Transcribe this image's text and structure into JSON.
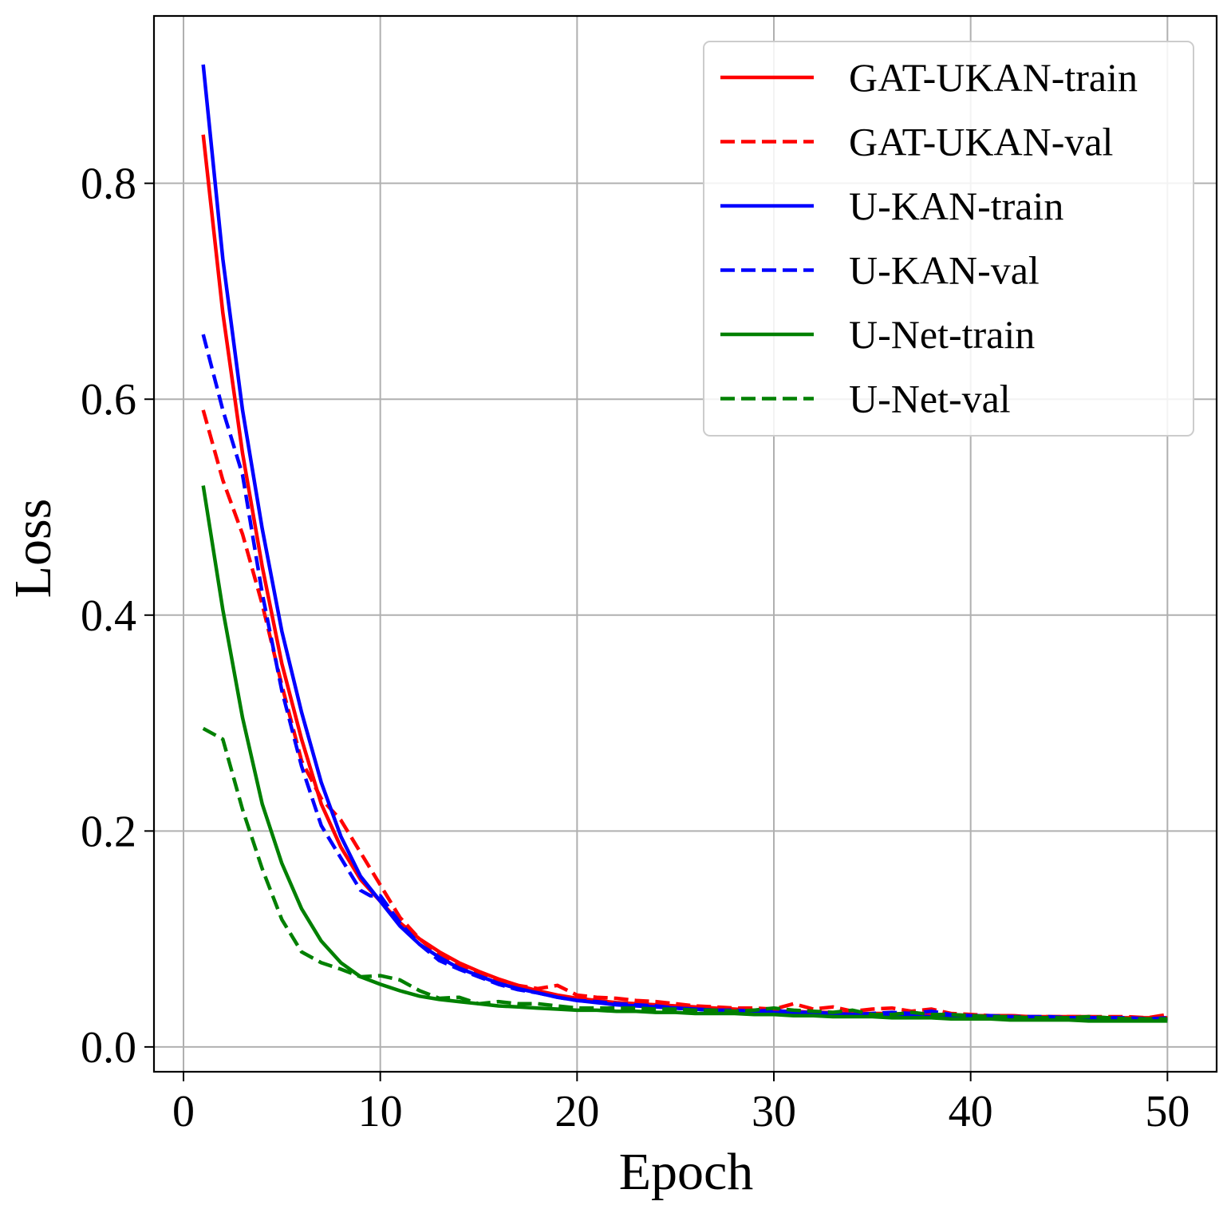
{
  "chart_data": {
    "type": "line",
    "title": "",
    "xlabel": "Epoch",
    "ylabel": "Loss",
    "xlim": [
      -1.5,
      52.5
    ],
    "ylim": [
      -0.023,
      0.955
    ],
    "xticks": [
      0,
      10,
      20,
      30,
      40,
      50
    ],
    "xtick_labels": [
      "0",
      "10",
      "20",
      "30",
      "40",
      "50"
    ],
    "yticks": [
      0.0,
      0.2,
      0.4,
      0.6,
      0.8
    ],
    "ytick_labels": [
      "0.0",
      "0.2",
      "0.4",
      "0.6",
      "0.8"
    ],
    "grid": true,
    "legend_position": "top-right",
    "series": [
      {
        "name": "GAT-UKAN-train",
        "color": "#ff0000",
        "dash": "solid",
        "x": [
          1,
          2,
          3,
          4,
          5,
          6,
          7,
          8,
          9,
          10,
          11,
          12,
          13,
          14,
          15,
          16,
          17,
          18,
          19,
          20,
          21,
          22,
          23,
          24,
          25,
          26,
          27,
          28,
          29,
          30,
          31,
          32,
          33,
          34,
          35,
          36,
          37,
          38,
          39,
          40,
          41,
          42,
          43,
          44,
          45,
          46,
          47,
          48,
          49,
          50
        ],
        "y": [
          0.845,
          0.68,
          0.55,
          0.445,
          0.355,
          0.285,
          0.225,
          0.185,
          0.155,
          0.135,
          0.115,
          0.1,
          0.088,
          0.078,
          0.07,
          0.063,
          0.057,
          0.052,
          0.048,
          0.045,
          0.043,
          0.041,
          0.04,
          0.039,
          0.038,
          0.037,
          0.036,
          0.035,
          0.034,
          0.033,
          0.033,
          0.032,
          0.032,
          0.031,
          0.031,
          0.031,
          0.03,
          0.03,
          0.03,
          0.029,
          0.029,
          0.029,
          0.028,
          0.028,
          0.028,
          0.028,
          0.027,
          0.027,
          0.027,
          0.027
        ]
      },
      {
        "name": "GAT-UKAN-val",
        "color": "#ff0000",
        "dash": "dashed",
        "x": [
          1,
          2,
          3,
          4,
          5,
          6,
          7,
          8,
          9,
          10,
          11,
          12,
          13,
          14,
          15,
          16,
          17,
          18,
          19,
          20,
          21,
          22,
          23,
          24,
          25,
          26,
          27,
          28,
          29,
          30,
          31,
          32,
          33,
          34,
          35,
          36,
          37,
          38,
          39,
          40,
          41,
          42,
          43,
          44,
          45,
          46,
          47,
          48,
          49,
          50
        ],
        "y": [
          0.59,
          0.525,
          0.475,
          0.41,
          0.335,
          0.265,
          0.23,
          0.21,
          0.18,
          0.15,
          0.12,
          0.1,
          0.085,
          0.075,
          0.068,
          0.062,
          0.057,
          0.054,
          0.057,
          0.048,
          0.046,
          0.045,
          0.043,
          0.042,
          0.04,
          0.038,
          0.037,
          0.036,
          0.036,
          0.035,
          0.04,
          0.035,
          0.037,
          0.033,
          0.035,
          0.036,
          0.033,
          0.035,
          0.031,
          0.03,
          0.029,
          0.029,
          0.028,
          0.028,
          0.028,
          0.028,
          0.028,
          0.028,
          0.027,
          0.03
        ]
      },
      {
        "name": "U-KAN-train",
        "color": "#0000ff",
        "dash": "solid",
        "x": [
          1,
          2,
          3,
          4,
          5,
          6,
          7,
          8,
          9,
          10,
          11,
          12,
          13,
          14,
          15,
          16,
          17,
          18,
          19,
          20,
          21,
          22,
          23,
          24,
          25,
          26,
          27,
          28,
          29,
          30,
          31,
          32,
          33,
          34,
          35,
          36,
          37,
          38,
          39,
          40,
          41,
          42,
          43,
          44,
          45,
          46,
          47,
          48,
          49,
          50
        ],
        "y": [
          0.91,
          0.73,
          0.59,
          0.48,
          0.385,
          0.31,
          0.245,
          0.195,
          0.158,
          0.135,
          0.112,
          0.095,
          0.083,
          0.073,
          0.066,
          0.059,
          0.054,
          0.05,
          0.046,
          0.043,
          0.041,
          0.039,
          0.038,
          0.037,
          0.036,
          0.035,
          0.034,
          0.033,
          0.033,
          0.032,
          0.031,
          0.031,
          0.03,
          0.03,
          0.029,
          0.029,
          0.029,
          0.028,
          0.028,
          0.028,
          0.028,
          0.027,
          0.027,
          0.027,
          0.027,
          0.027,
          0.026,
          0.026,
          0.026,
          0.026
        ]
      },
      {
        "name": "U-KAN-val",
        "color": "#0000ff",
        "dash": "dashed",
        "x": [
          1,
          2,
          3,
          4,
          5,
          6,
          7,
          8,
          9,
          9.5,
          10,
          11,
          12,
          13,
          14,
          15,
          16,
          17,
          18,
          19,
          20,
          21,
          22,
          23,
          24,
          25,
          26,
          27,
          28,
          29,
          30,
          31,
          32,
          33,
          34,
          35,
          36,
          37,
          38,
          39,
          40,
          41,
          42,
          43,
          44,
          45,
          46,
          47,
          48,
          49,
          50
        ],
        "y": [
          0.66,
          0.59,
          0.53,
          0.42,
          0.33,
          0.26,
          0.205,
          0.175,
          0.145,
          0.14,
          0.14,
          0.115,
          0.095,
          0.08,
          0.072,
          0.065,
          0.058,
          0.053,
          0.05,
          0.046,
          0.043,
          0.042,
          0.04,
          0.039,
          0.038,
          0.036,
          0.035,
          0.034,
          0.034,
          0.033,
          0.034,
          0.032,
          0.032,
          0.031,
          0.03,
          0.031,
          0.032,
          0.031,
          0.033,
          0.03,
          0.029,
          0.029,
          0.028,
          0.028,
          0.028,
          0.027,
          0.027,
          0.027,
          0.027,
          0.026,
          0.027
        ]
      },
      {
        "name": "U-Net-train",
        "color": "#008000",
        "dash": "solid",
        "x": [
          1,
          2,
          3,
          4,
          5,
          6,
          7,
          8,
          9,
          10,
          11,
          12,
          13,
          14,
          15,
          16,
          17,
          18,
          19,
          20,
          21,
          22,
          23,
          24,
          25,
          26,
          27,
          28,
          29,
          30,
          31,
          32,
          33,
          34,
          35,
          36,
          37,
          38,
          39,
          40,
          41,
          42,
          43,
          44,
          45,
          46,
          47,
          48,
          49,
          50
        ],
        "y": [
          0.52,
          0.405,
          0.305,
          0.225,
          0.17,
          0.128,
          0.098,
          0.078,
          0.065,
          0.058,
          0.052,
          0.047,
          0.044,
          0.042,
          0.04,
          0.038,
          0.037,
          0.036,
          0.035,
          0.034,
          0.034,
          0.033,
          0.033,
          0.032,
          0.032,
          0.031,
          0.031,
          0.031,
          0.03,
          0.03,
          0.029,
          0.029,
          0.028,
          0.028,
          0.028,
          0.027,
          0.027,
          0.027,
          0.026,
          0.026,
          0.026,
          0.025,
          0.025,
          0.025,
          0.025,
          0.024,
          0.024,
          0.024,
          0.024,
          0.024
        ]
      },
      {
        "name": "U-Net-val",
        "color": "#008000",
        "dash": "dashed",
        "x": [
          1,
          2,
          3,
          4,
          5,
          6,
          7,
          8,
          9,
          10,
          11,
          12,
          13,
          14,
          15,
          16,
          17,
          18,
          19,
          20,
          21,
          22,
          23,
          24,
          25,
          26,
          27,
          28,
          29,
          30,
          31,
          32,
          33,
          34,
          35,
          36,
          37,
          38,
          39,
          40,
          41,
          42,
          43,
          44,
          45,
          46,
          47,
          48,
          49,
          50
        ],
        "y": [
          0.295,
          0.285,
          0.22,
          0.165,
          0.118,
          0.088,
          0.078,
          0.072,
          0.065,
          0.066,
          0.062,
          0.052,
          0.045,
          0.046,
          0.04,
          0.042,
          0.04,
          0.04,
          0.038,
          0.036,
          0.036,
          0.036,
          0.036,
          0.035,
          0.035,
          0.034,
          0.034,
          0.033,
          0.034,
          0.036,
          0.034,
          0.033,
          0.032,
          0.034,
          0.03,
          0.03,
          0.032,
          0.03,
          0.03,
          0.029,
          0.028,
          0.028,
          0.027,
          0.027,
          0.027,
          0.028,
          0.027,
          0.026,
          0.026,
          0.026
        ]
      }
    ]
  }
}
